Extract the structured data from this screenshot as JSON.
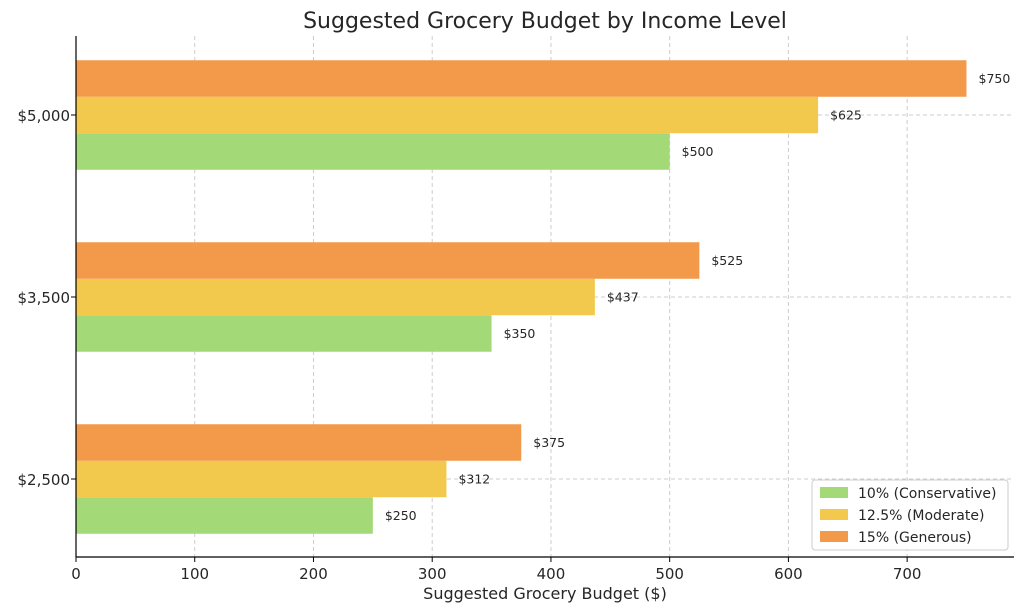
{
  "chart_data": {
    "type": "bar",
    "orientation": "horizontal",
    "title": "Suggested Grocery Budget by Income Level",
    "xlabel": "Suggested Grocery Budget ($)",
    "ylabel": "",
    "categories": [
      "$2,500",
      "$3,500",
      "$5,000"
    ],
    "series": [
      {
        "name": "10% (Conservative)",
        "color": "#a3d977",
        "values": [
          250,
          350,
          500
        ],
        "labels": [
          "$250",
          "$350",
          "$500"
        ]
      },
      {
        "name": "12.5% (Moderate)",
        "color": "#f2c94c",
        "values": [
          312,
          437,
          625
        ],
        "labels": [
          "$312",
          "$437",
          "$625"
        ]
      },
      {
        "name": "15% (Generous)",
        "color": "#f2994a",
        "values": [
          375,
          525,
          750
        ],
        "labels": [
          "$375",
          "$525",
          "$750"
        ]
      }
    ],
    "xlim": [
      0,
      790
    ],
    "xticks": [
      0,
      100,
      200,
      300,
      400,
      500,
      600,
      700
    ],
    "grid": true,
    "legend_position": "bottom-right"
  }
}
